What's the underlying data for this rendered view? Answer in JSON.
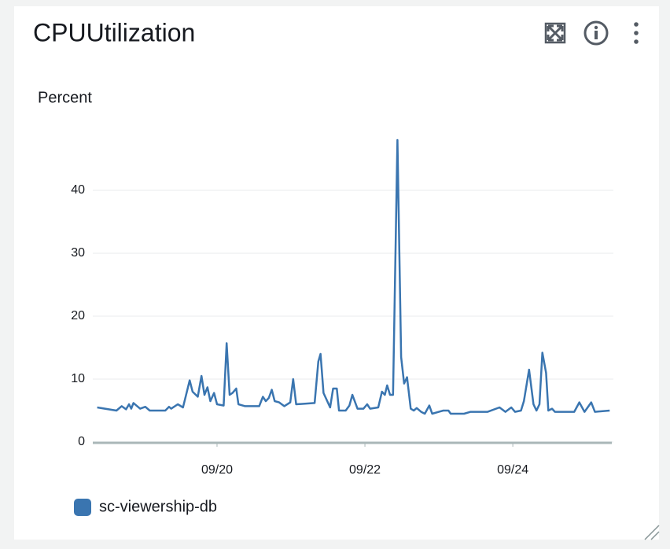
{
  "chart_data": {
    "type": "line",
    "title": "CPUUtilization",
    "ylabel": "Percent",
    "ylim": [
      0,
      48
    ],
    "yticks": [
      0,
      10,
      20,
      30,
      40
    ],
    "xlim": [
      18.32,
      25.36
    ],
    "xticks": [
      {
        "value": 20,
        "label": "09/20"
      },
      {
        "value": 22,
        "label": "09/22"
      },
      {
        "value": 24,
        "label": "09/24"
      }
    ],
    "grid": true,
    "legend": "bottom-left",
    "series": [
      {
        "name": "sc-viewership-db",
        "color": "#3a75b0",
        "x": [
          18.38,
          18.64,
          18.71,
          18.77,
          18.81,
          18.84,
          18.87,
          18.96,
          19.03,
          19.09,
          19.3,
          19.35,
          19.38,
          19.47,
          19.54,
          19.63,
          19.67,
          19.74,
          19.79,
          19.83,
          19.87,
          19.91,
          19.96,
          20.0,
          20.09,
          20.13,
          20.17,
          20.21,
          20.26,
          20.29,
          20.38,
          20.57,
          20.62,
          20.66,
          20.7,
          20.74,
          20.78,
          20.84,
          20.91,
          20.99,
          21.03,
          21.07,
          21.32,
          21.37,
          21.4,
          21.44,
          21.53,
          21.57,
          21.62,
          21.65,
          21.74,
          21.79,
          21.83,
          21.9,
          21.98,
          22.03,
          22.07,
          22.18,
          22.23,
          22.27,
          22.3,
          22.34,
          22.38,
          22.44,
          22.49,
          22.53,
          22.57,
          22.62,
          22.66,
          22.7,
          22.76,
          22.81,
          22.87,
          22.91,
          23.0,
          23.06,
          23.13,
          23.16,
          23.34,
          23.43,
          23.66,
          23.82,
          23.9,
          23.98,
          24.03,
          24.11,
          24.15,
          24.22,
          24.28,
          24.32,
          24.36,
          24.4,
          24.45,
          24.48,
          24.53,
          24.57,
          24.83,
          24.9,
          24.97,
          25.06,
          25.11,
          25.31
        ],
        "values": [
          5.5,
          5.0,
          5.7,
          5.2,
          6.0,
          5.3,
          6.2,
          5.3,
          5.6,
          5.0,
          5.0,
          5.6,
          5.3,
          6.0,
          5.5,
          9.8,
          8.0,
          7.2,
          10.5,
          7.5,
          8.7,
          6.5,
          7.8,
          6.0,
          5.8,
          15.7,
          7.5,
          7.8,
          8.5,
          6.0,
          5.7,
          5.7,
          7.2,
          6.5,
          7.0,
          8.3,
          6.5,
          6.3,
          5.7,
          6.3,
          10.0,
          6.0,
          6.2,
          12.8,
          14.0,
          7.8,
          5.5,
          8.5,
          8.5,
          5.0,
          5.0,
          5.8,
          7.5,
          5.3,
          5.3,
          6.0,
          5.3,
          5.5,
          8.0,
          7.5,
          9.0,
          7.5,
          7.5,
          48.0,
          13.5,
          9.3,
          10.3,
          5.3,
          5.0,
          5.4,
          4.8,
          4.5,
          5.8,
          4.5,
          4.8,
          5.0,
          5.0,
          4.5,
          4.5,
          4.8,
          4.8,
          5.5,
          4.8,
          5.5,
          4.8,
          5.0,
          6.5,
          11.5,
          6.0,
          5.0,
          6.0,
          14.2,
          11.0,
          5.0,
          5.3,
          4.8,
          4.8,
          6.3,
          4.8,
          6.3,
          4.8,
          5.0
        ]
      }
    ]
  }
}
